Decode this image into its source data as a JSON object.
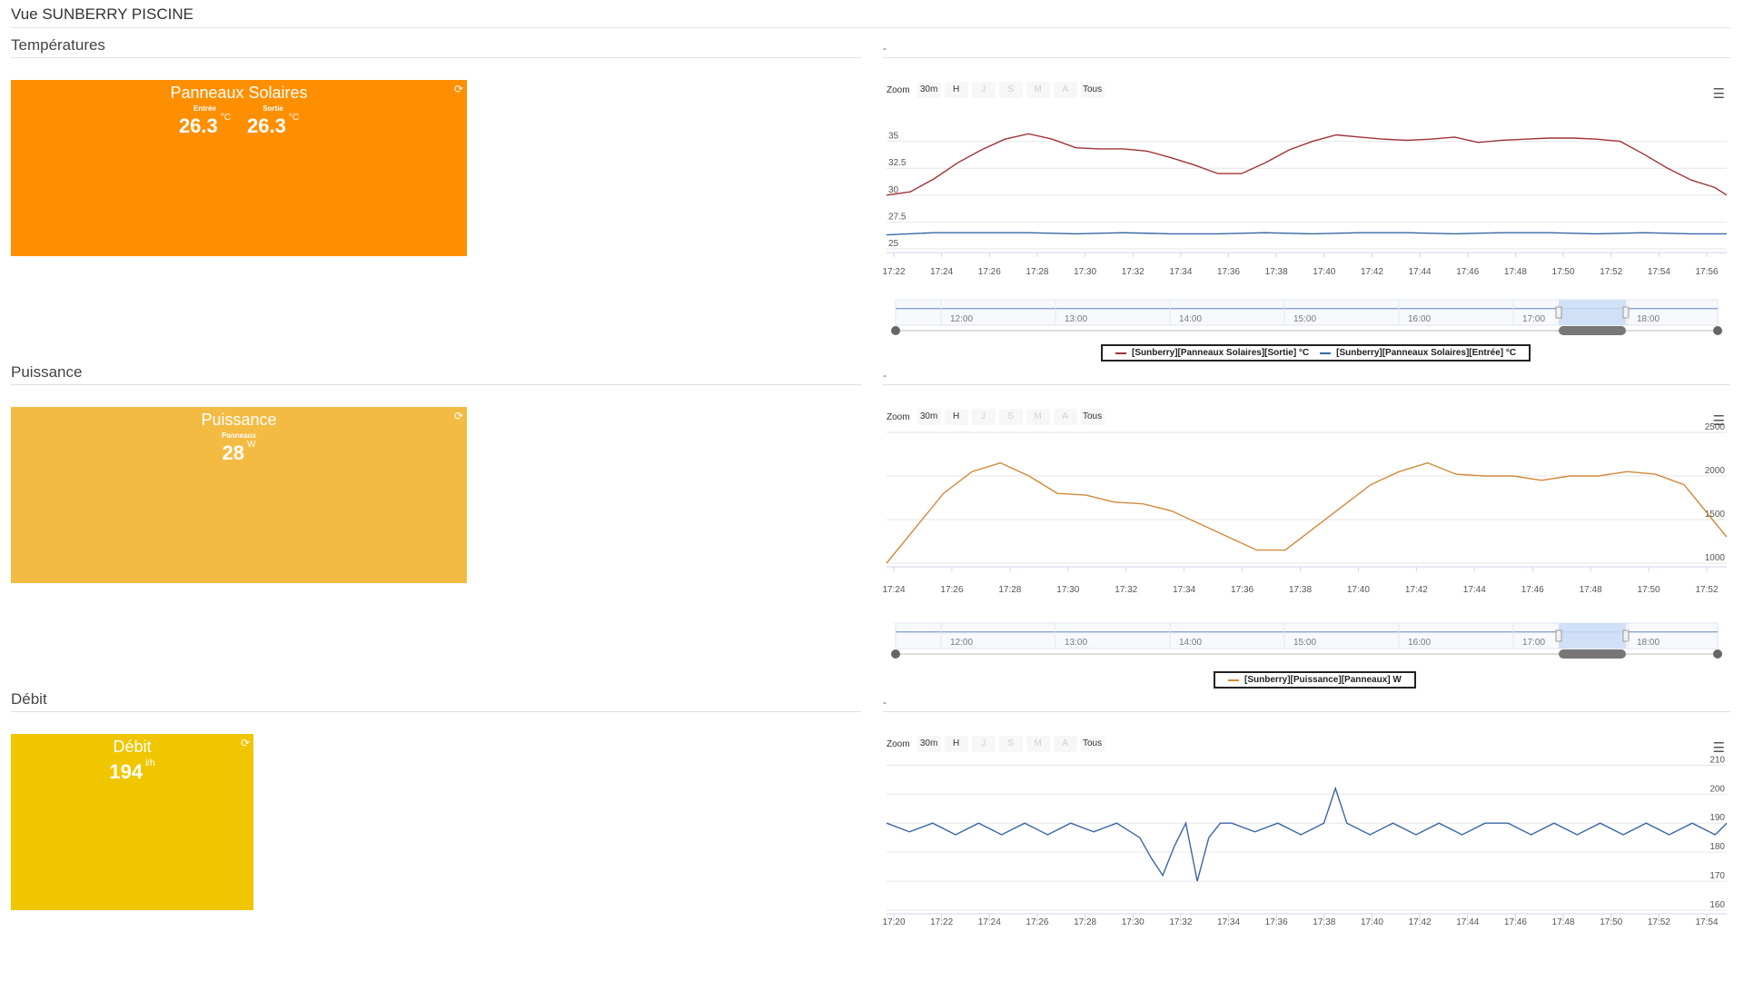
{
  "page": {
    "title": "Vue SUNBERRY PISCINE"
  },
  "zoom": {
    "label": "Zoom",
    "buttons": [
      {
        "label": "30m",
        "enabled": true
      },
      {
        "label": "H",
        "enabled": true
      },
      {
        "label": "J",
        "enabled": false
      },
      {
        "label": "S",
        "enabled": false
      },
      {
        "label": "M",
        "enabled": false
      },
      {
        "label": "A",
        "enabled": false
      },
      {
        "label": "Tous",
        "enabled": true
      }
    ]
  },
  "sections": [
    {
      "title": "Températures",
      "right_label": "-",
      "widget": {
        "title": "Panneaux Solaires",
        "color": "#fe8f00",
        "values": [
          {
            "label": "Entrée",
            "value": "26.3",
            "unit": "°C"
          },
          {
            "label": "Sortie",
            "value": "26.3",
            "unit": "°C"
          }
        ]
      }
    },
    {
      "title": "Puissance",
      "right_label": "-",
      "widget": {
        "title": "Puissance",
        "color": "#f4bb43",
        "values": [
          {
            "label": "Panneaux",
            "value": "28",
            "unit": "W"
          }
        ]
      }
    },
    {
      "title": "Débit",
      "right_label": "-",
      "widget": {
        "title": "Débit",
        "color": "#efc600",
        "values": [
          {
            "label": "",
            "value": "194",
            "unit": "l/h"
          }
        ]
      }
    }
  ],
  "chart_data": [
    {
      "type": "line",
      "x_ticks": [
        "17:22",
        "17:24",
        "17:26",
        "17:28",
        "17:30",
        "17:32",
        "17:34",
        "17:36",
        "17:38",
        "17:40",
        "17:42",
        "17:44",
        "17:46",
        "17:48",
        "17:50",
        "17:52",
        "17:54",
        "17:56"
      ],
      "y_ticks": [
        "25",
        "27.5",
        "30",
        "32.5",
        "35"
      ],
      "ylim": [
        25,
        37.5
      ],
      "xlim": [
        0,
        35.5
      ],
      "series": [
        {
          "name": "[Sunberry][Panneaux Solaires][Sortie] °C",
          "color": "#a03336",
          "x": [
            0,
            1,
            2,
            3,
            4,
            5,
            6,
            7,
            8,
            9,
            10,
            11,
            12,
            13,
            14,
            15,
            16,
            17,
            18,
            19,
            20,
            21,
            22,
            23,
            24,
            25,
            26,
            27,
            28,
            29,
            30,
            31,
            32,
            33,
            34,
            35,
            35.5
          ],
          "values": [
            30,
            30.3,
            31.5,
            33,
            34.2,
            35.2,
            35.7,
            35.2,
            34.4,
            34.3,
            34.3,
            34.1,
            33.5,
            32.8,
            32,
            32,
            33,
            34.2,
            35,
            35.6,
            35.4,
            35.2,
            35.1,
            35.2,
            35.4,
            34.9,
            35.1,
            35.2,
            35.3,
            35.3,
            35.2,
            35,
            33.8,
            32.5,
            31.4,
            30.7,
            30
          ]
        },
        {
          "name": "[Sunberry][Panneaux Solaires][Entrée] °C",
          "color": "#3a67a6",
          "x": [
            0,
            2,
            4,
            6,
            8,
            10,
            12,
            14,
            16,
            18,
            20,
            22,
            24,
            26,
            28,
            30,
            32,
            34,
            35.5
          ],
          "values": [
            26.3,
            26.5,
            26.5,
            26.5,
            26.4,
            26.5,
            26.4,
            26.4,
            26.5,
            26.4,
            26.5,
            26.5,
            26.4,
            26.5,
            26.5,
            26.4,
            26.5,
            26.4,
            26.4
          ]
        }
      ],
      "navigator": {
        "labels": [
          "12:00",
          "13:00",
          "14:00",
          "15:00",
          "16:00",
          "17:00",
          "18:00"
        ]
      }
    },
    {
      "type": "line",
      "x_ticks": [
        "17:24",
        "17:26",
        "17:28",
        "17:30",
        "17:32",
        "17:34",
        "17:36",
        "17:38",
        "17:40",
        "17:42",
        "17:44",
        "17:46",
        "17:48",
        "17:50",
        "17:52"
      ],
      "y_ticks": [
        "1000",
        "1500",
        "2000",
        "2500"
      ],
      "ylim": [
        1000,
        2500
      ],
      "xlim": [
        0,
        29.5
      ],
      "series": [
        {
          "name": "[Sunberry][Puissance][Panneaux] W",
          "color": "#d0893a",
          "x": [
            0,
            1,
            2,
            3,
            4,
            5,
            6,
            7,
            8,
            9,
            10,
            11,
            12,
            13,
            14,
            15,
            16,
            17,
            18,
            19,
            20,
            21,
            22,
            23,
            24,
            25,
            26,
            27,
            28,
            29,
            29.5
          ],
          "values": [
            1000,
            1400,
            1800,
            2050,
            2150,
            2000,
            1800,
            1780,
            1700,
            1680,
            1600,
            1450,
            1300,
            1150,
            1150,
            1400,
            1650,
            1900,
            2050,
            2150,
            2020,
            2000,
            2000,
            1950,
            2000,
            2000,
            2050,
            2020,
            1900,
            1500,
            1300
          ]
        }
      ],
      "navigator": {
        "labels": [
          "12:00",
          "13:00",
          "14:00",
          "15:00",
          "16:00",
          "17:00",
          "18:00"
        ]
      }
    },
    {
      "type": "line",
      "x_ticks": [
        "17:20",
        "17:22",
        "17:24",
        "17:26",
        "17:28",
        "17:30",
        "17:32",
        "17:34",
        "17:36",
        "17:38",
        "17:40",
        "17:42",
        "17:44",
        "17:46",
        "17:48",
        "17:50",
        "17:52",
        "17:54"
      ],
      "y_ticks": [
        "160",
        "170",
        "180",
        "190",
        "200",
        "210"
      ],
      "ylim": [
        160,
        212
      ],
      "xlim": [
        0,
        36.5
      ],
      "series": [
        {
          "name": "",
          "color": "#3a67a6",
          "x": [
            0,
            1,
            2,
            3,
            4,
            5,
            6,
            7,
            8,
            9,
            10,
            11,
            11.5,
            12,
            12.5,
            13,
            13.5,
            14,
            14.5,
            15,
            16,
            17,
            18,
            19,
            19.5,
            20,
            21,
            22,
            23,
            24,
            25,
            26,
            27,
            28,
            29,
            30,
            31,
            32,
            33,
            34,
            35,
            36,
            36.5
          ],
          "values": [
            190,
            187,
            190,
            186,
            190,
            186,
            190,
            186,
            190,
            187,
            190,
            185,
            178,
            172,
            182,
            190,
            170,
            185,
            190,
            190,
            187,
            190,
            186,
            190,
            202,
            190,
            186,
            190,
            186,
            190,
            186,
            190,
            190,
            186,
            190,
            186,
            190,
            186,
            190,
            186,
            190,
            186,
            190
          ]
        }
      ]
    }
  ]
}
